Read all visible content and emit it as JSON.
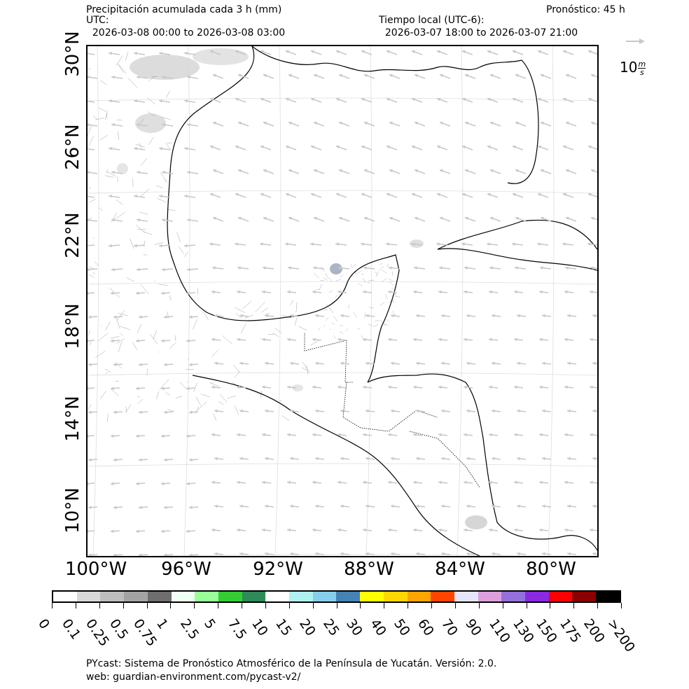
{
  "header": {
    "title": "Precipitación acumulada cada 3 h (mm)",
    "utc_label": "UTC:",
    "utc_range": "  2026-03-08 00:00 to 2026-03-08 03:00",
    "forecast": "Pronóstico: 45 h",
    "local_label": "Tiempo local (UTC-6):",
    "local_range": "  2026-03-07 18:00 to 2026-03-07 21:00"
  },
  "wind_key": {
    "value": "10",
    "unit_num": "m",
    "unit_den": "s"
  },
  "map": {
    "lat_labels": [
      "30°N",
      "26°N",
      "22°N",
      "18°N",
      "14°N",
      "10°N"
    ],
    "lon_labels": [
      "100°W",
      "96°W",
      "92°W",
      "88°W",
      "84°W",
      "80°W"
    ],
    "extent": {
      "lon_min": -100.3,
      "lon_max": -77.8,
      "lat_min": 8.2,
      "lat_max": 30.8
    },
    "arrow_color": "#c8c8c8",
    "coast_color": "#000000",
    "grid_color": "#dddddd"
  },
  "colorbar": {
    "colors": [
      "#ffffff",
      "#d9d9d9",
      "#bdbdbd",
      "#a3a3a3",
      "#6e6e6e",
      "#f0fff0",
      "#99ff99",
      "#33cc33",
      "#2e8b57",
      "#ffffff",
      "#b0f0f0",
      "#87ceeb",
      "#4682b4",
      "#ffff00",
      "#ffd700",
      "#ffa500",
      "#ff4500",
      "#e6e6fa",
      "#dda0dd",
      "#9370db",
      "#8a2be2",
      "#ff0000",
      "#8b0000",
      "#000000"
    ],
    "ticks": [
      "0",
      "0.1",
      "0.25",
      "0.5",
      "0.75",
      "1",
      "2.5",
      "5",
      "7.5",
      "10",
      "15",
      "20",
      "25",
      "30",
      "40",
      "50",
      "60",
      "70",
      "90",
      "110",
      "130",
      "150",
      "175",
      "200",
      ">200"
    ]
  },
  "footer": {
    "line1": "PYcast: Sistema de Pronóstico Atmosférico de la Península de Yucatán. Versión: 2.0.",
    "line2": "web: guardian-environment.com/pycast-v2/"
  }
}
